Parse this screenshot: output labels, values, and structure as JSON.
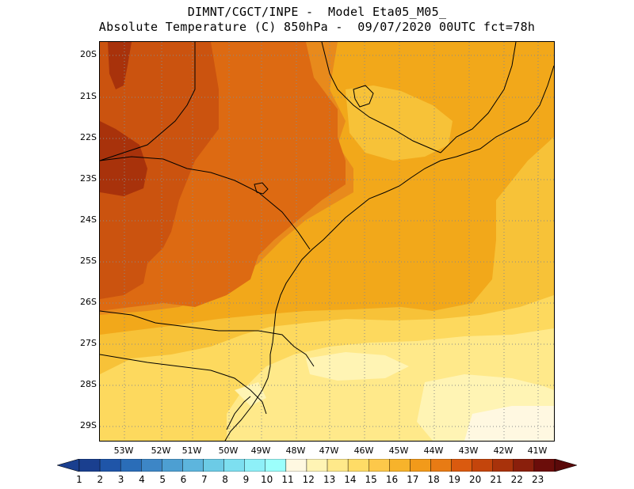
{
  "title": {
    "line1": "DIMNT/CGCT/INPE -  Model Eta05_M05_",
    "line2": "Absolute Temperature (C) 850hPa -  09/07/2020 00UTC fct=78h"
  },
  "lat_labels": [
    "20S",
    "21S",
    "22S",
    "23S",
    "24S",
    "25S",
    "26S",
    "27S",
    "28S",
    "29S"
  ],
  "lon_labels": [
    "53W",
    "52W",
    "51W",
    "50W",
    "49W",
    "48W",
    "47W",
    "46W",
    "45W",
    "44W",
    "43W",
    "42W",
    "41W"
  ],
  "colorbar": {
    "labels": [
      "1",
      "2",
      "3",
      "4",
      "5",
      "6",
      "7",
      "8",
      "9",
      "10",
      "11",
      "12",
      "13",
      "14",
      "15",
      "16",
      "17",
      "18",
      "19",
      "20",
      "21",
      "22",
      "23"
    ],
    "colors": [
      "#1a3f8f",
      "#1f55a8",
      "#2a6db8",
      "#3d86c6",
      "#4d9fd2",
      "#5db5dd",
      "#6ccbe6",
      "#7ddff0",
      "#8ef0f8",
      "#9cfffc",
      "#fff8e1",
      "#fff4b4",
      "#ffe98a",
      "#ffdc66",
      "#fdc84a",
      "#f7b32b",
      "#f29a1a",
      "#e87b14",
      "#da5a0f",
      "#c4450c",
      "#a8320b",
      "#8a1f0c",
      "#6b0d0a"
    ],
    "under_color": "#1a3f8f",
    "over_color": "#5a0a0a"
  },
  "map": {
    "description_colors": {
      "t12": "#fff8e1",
      "t13": "#fff4b4",
      "t14": "#ffe98a",
      "t15": "#fdd95e",
      "t16": "#f7c238",
      "t17": "#f2a81a",
      "t18": "#e88a1c",
      "t19": "#dd6a12",
      "t20": "#cb530f",
      "t21": "#a8320b"
    }
  }
}
